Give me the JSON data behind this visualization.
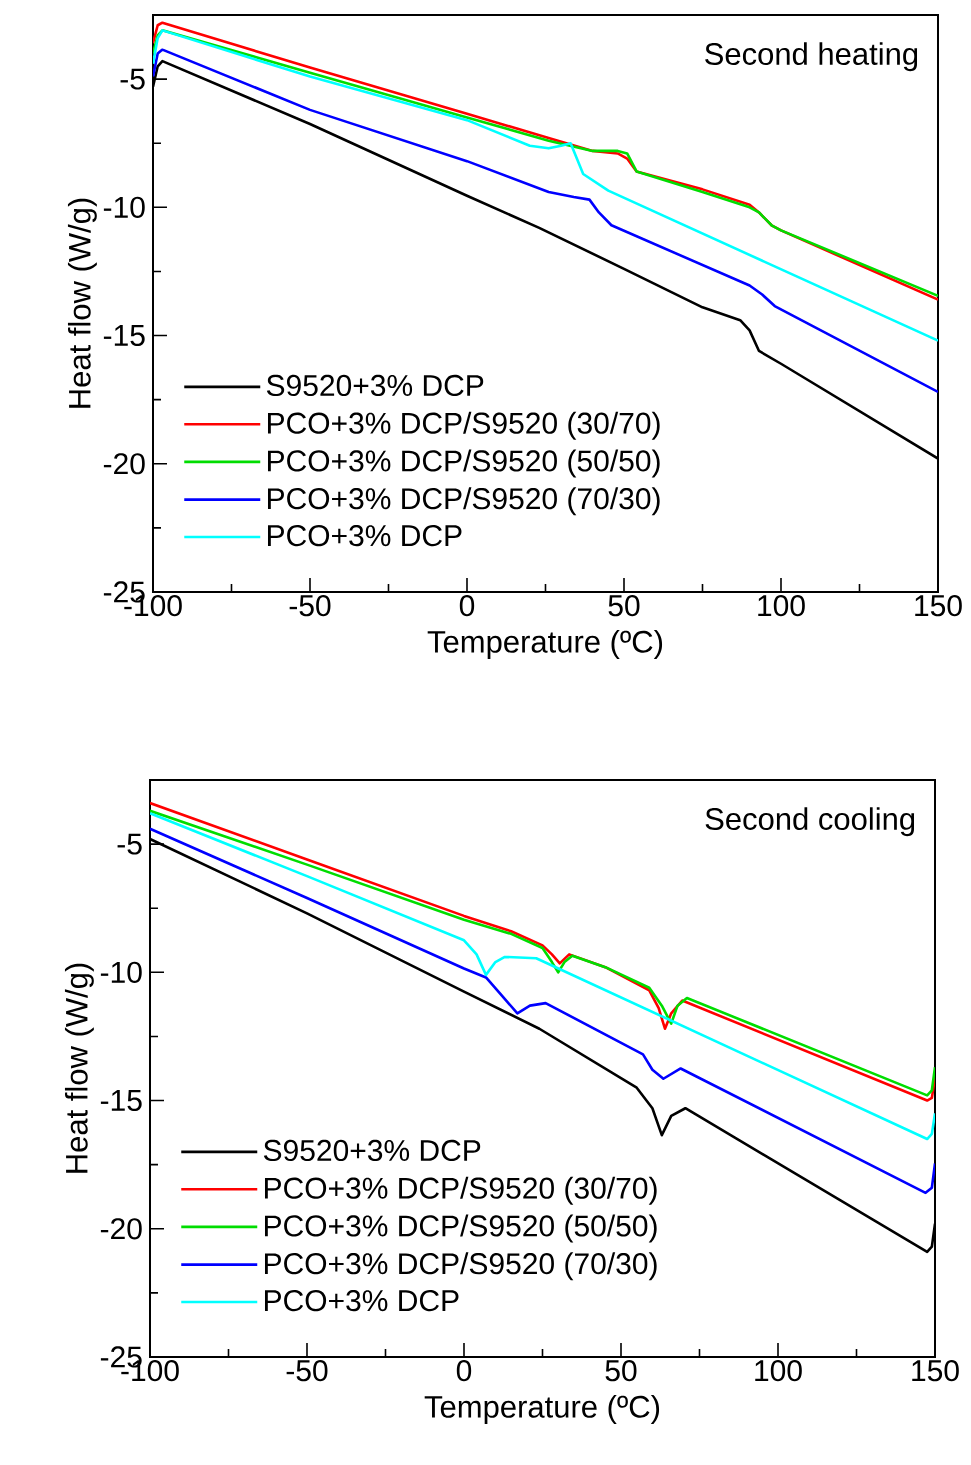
{
  "chart_data": [
    {
      "type": "line",
      "xlabel": "Temperature (ºC)",
      "ylabel": "Heat flow (W/g)",
      "xlim": [
        -100,
        150
      ],
      "ylim": [
        -25,
        -2.5
      ],
      "xticks": [
        -100,
        -50,
        0,
        50,
        100,
        150
      ],
      "yticks": [
        -25,
        -20,
        -15,
        -10,
        -5
      ],
      "legend": "bottom left",
      "annotations": [
        "Second heating"
      ],
      "series": [
        {
          "name": "S9520+3% DCP",
          "color": "#000000",
          "x": [
            -100,
            -98.5,
            -97,
            -50,
            0,
            23,
            50,
            75,
            87,
            90,
            93,
            100,
            150
          ],
          "values": [
            -5.3,
            -4.5,
            -4.3,
            -6.75,
            -9.55,
            -10.8,
            -12.4,
            -13.9,
            -14.4,
            -14.8,
            -15.6,
            -16.1,
            -19.8
          ]
        },
        {
          "name": "PCO+3% DCP/S9520 (30/70)",
          "color": "#ff0000",
          "x": [
            -100,
            -98.5,
            -97,
            -50,
            0,
            26,
            40,
            48,
            51,
            54,
            75,
            90,
            93,
            97,
            100,
            150
          ],
          "values": [
            -3.6,
            -2.9,
            -2.8,
            -4.55,
            -6.35,
            -7.3,
            -7.8,
            -7.9,
            -8.1,
            -8.6,
            -9.3,
            -9.9,
            -10.2,
            -10.7,
            -10.9,
            -13.6
          ]
        },
        {
          "name": "PCO+3% DCP/S9520 (50/50)",
          "color": "#00dd00",
          "x": [
            -100,
            -98.5,
            -97,
            -50,
            0,
            26,
            40,
            48,
            51,
            54,
            75,
            90,
            93,
            97,
            100,
            150
          ],
          "values": [
            -4.0,
            -3.3,
            -3.1,
            -4.75,
            -6.5,
            -7.4,
            -7.8,
            -7.8,
            -7.9,
            -8.6,
            -9.4,
            -10.0,
            -10.2,
            -10.7,
            -10.9,
            -13.45
          ]
        },
        {
          "name": "PCO+3% DCP/S9520 (70/30)",
          "color": "#0000ff",
          "x": [
            -100,
            -98.5,
            -97,
            -50,
            0,
            26,
            34,
            39,
            42,
            46,
            90,
            94,
            98,
            150
          ],
          "values": [
            -4.9,
            -4.0,
            -3.85,
            -6.2,
            -8.2,
            -9.4,
            -9.6,
            -9.7,
            -10.2,
            -10.7,
            -13.05,
            -13.4,
            -13.85,
            -17.2
          ]
        },
        {
          "name": "PCO+3% DCP",
          "color": "#00ffff",
          "x": [
            -100,
            -98.5,
            -97,
            -50,
            0,
            20,
            26,
            30,
            33,
            35,
            37,
            45,
            150
          ],
          "values": [
            -4.4,
            -3.4,
            -3.1,
            -4.9,
            -6.6,
            -7.6,
            -7.7,
            -7.6,
            -7.5,
            -8.1,
            -8.7,
            -9.35,
            -15.2
          ]
        }
      ]
    },
    {
      "type": "line",
      "xlabel": "Temperature (ºC)",
      "ylabel": "Heat flow (W/g)",
      "xlim": [
        -100,
        150
      ],
      "ylim": [
        -25,
        -2.5
      ],
      "xticks": [
        -100,
        -50,
        0,
        50,
        100,
        150
      ],
      "yticks": [
        -25,
        -20,
        -15,
        -10,
        -5
      ],
      "legend": "bottom left",
      "annotations": [
        "Second cooling"
      ],
      "series": [
        {
          "name": "S9520+3% DCP",
          "color": "#000000",
          "x": [
            -100,
            -50,
            0,
            24,
            55,
            60,
            63,
            66,
            70.5,
            147.5,
            149,
            150
          ],
          "values": [
            -4.8,
            -7.7,
            -10.75,
            -12.2,
            -14.5,
            -15.3,
            -16.35,
            -15.6,
            -15.3,
            -20.9,
            -20.7,
            -19.8
          ]
        },
        {
          "name": "PCO+3% DCP/S9520 (30/70)",
          "color": "#ff0000",
          "x": [
            -100,
            -50,
            0,
            15,
            25,
            28,
            30.5,
            33.5,
            45,
            59,
            62,
            64,
            66,
            69.5,
            147.5,
            149,
            150
          ],
          "values": [
            -3.4,
            -5.6,
            -7.8,
            -8.4,
            -8.95,
            -9.3,
            -9.65,
            -9.3,
            -9.8,
            -10.7,
            -11.4,
            -12.2,
            -11.6,
            -11.1,
            -15.0,
            -14.9,
            -14.1
          ]
        },
        {
          "name": "PCO+3% DCP/S9520 (50/50)",
          "color": "#00dd00",
          "x": [
            -100,
            -50,
            0,
            15,
            25,
            28,
            30,
            32,
            34.5,
            45,
            59,
            63,
            66,
            68,
            71,
            147.5,
            149,
            150
          ],
          "values": [
            -3.7,
            -5.8,
            -7.95,
            -8.5,
            -9.05,
            -9.6,
            -10.0,
            -9.6,
            -9.35,
            -9.8,
            -10.6,
            -11.3,
            -12.0,
            -11.3,
            -11.0,
            -14.8,
            -14.6,
            -13.7
          ]
        },
        {
          "name": "PCO+3% DCP/S9520 (70/30)",
          "color": "#0000ff",
          "x": [
            -100,
            -50,
            0,
            7,
            12,
            17,
            21,
            26,
            57,
            60,
            63.5,
            69,
            147,
            149,
            150
          ],
          "values": [
            -4.4,
            -7.1,
            -9.85,
            -10.2,
            -10.9,
            -11.6,
            -11.3,
            -11.2,
            -13.2,
            -13.8,
            -14.15,
            -13.75,
            -18.6,
            -18.4,
            -17.45
          ]
        },
        {
          "name": "PCO+3% DCP",
          "color": "#00ffff",
          "x": [
            -100,
            -50,
            0,
            4,
            7,
            10,
            13,
            23,
            147.5,
            149,
            150
          ],
          "values": [
            -3.8,
            -6.25,
            -8.75,
            -9.3,
            -10.1,
            -9.6,
            -9.4,
            -9.45,
            -16.5,
            -16.3,
            -15.5
          ]
        }
      ]
    }
  ]
}
